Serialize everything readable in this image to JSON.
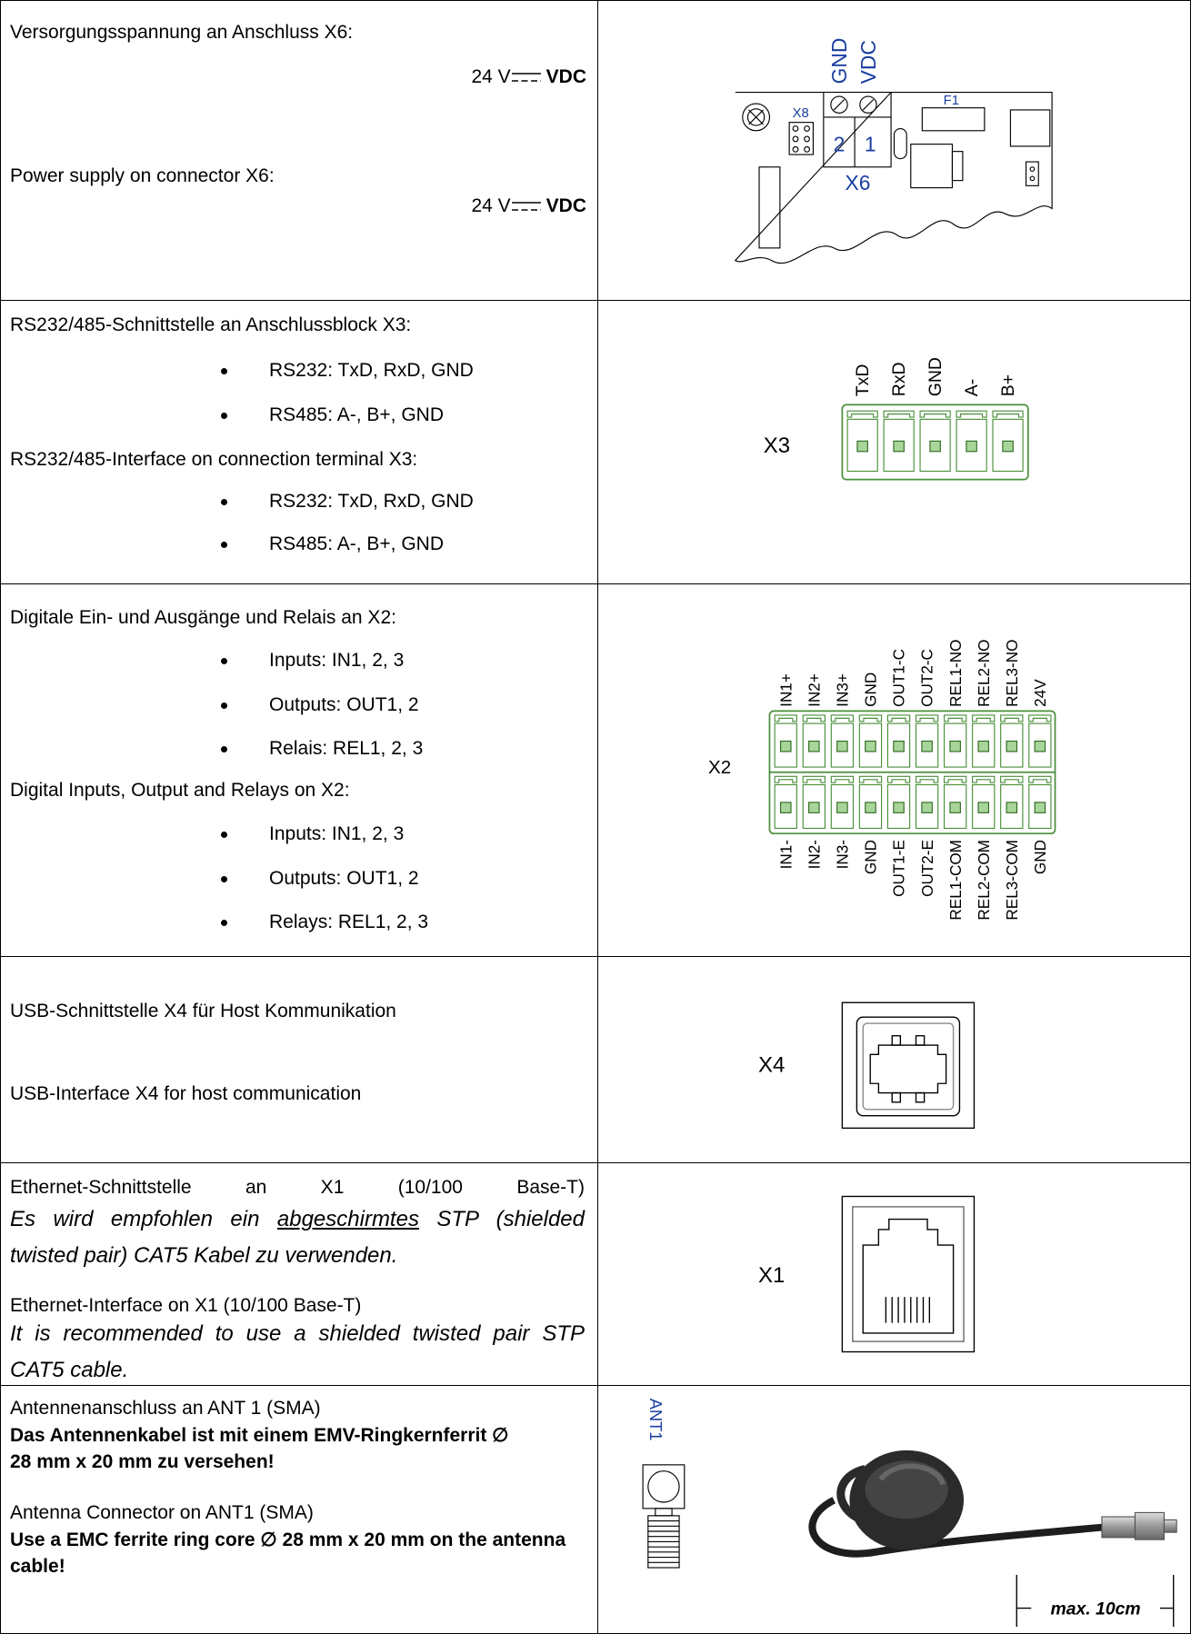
{
  "rows": [
    {
      "left": {
        "de": "Versorgungsspannung an Anschluss X6:",
        "de_voltage": "24 V",
        "de_unit": "VDC",
        "en": "Power supply on connector X6:",
        "en_voltage": "24 V",
        "en_unit": "VDC"
      },
      "right": {
        "pin_labels": [
          "GND",
          "VDC"
        ],
        "jumper": "X8",
        "fuse": "F1",
        "pin_numbers": [
          "2",
          "1"
        ],
        "connector": "X6"
      }
    },
    {
      "left": {
        "de": "RS232/485-Schnittstelle an Anschlussblock X3:",
        "de_bullets": [
          "RS232: TxD, RxD, GND",
          "RS485: A-, B+, GND"
        ],
        "en": "RS232/485-Interface on connection terminal X3:",
        "en_bullets": [
          "RS232: TxD, RxD, GND",
          "RS485: A-, B+, GND"
        ]
      },
      "right": {
        "connector": "X3",
        "pins": [
          "TxD",
          "RxD",
          "GND",
          "A-",
          "B+"
        ]
      }
    },
    {
      "left": {
        "de": "Digitale Ein- und Ausgänge und Relais an X2:",
        "de_bullets": [
          "Inputs: IN1, 2, 3",
          "Outputs: OUT1, 2",
          "Relais: REL1, 2, 3"
        ],
        "en": "Digital Inputs, Output and Relays on X2:",
        "en_bullets": [
          "Inputs: IN1, 2, 3",
          "Outputs: OUT1, 2",
          "Relays: REL1, 2, 3"
        ]
      },
      "right": {
        "connector": "X2",
        "top_pins": [
          "IN1+",
          "IN2+",
          "IN3+",
          "GND",
          "OUT1-C",
          "OUT2-C",
          "REL1-NO",
          "REL2-NO",
          "REL3-NO",
          "24V"
        ],
        "bottom_pins": [
          "IN1-",
          "IN2-",
          "IN3-",
          "GND",
          "OUT1-E",
          "OUT2-E",
          "REL1-COM",
          "REL2-COM",
          "REL3-COM",
          "GND"
        ]
      }
    },
    {
      "left": {
        "de": "USB-Schnittstelle X4 für Host Kommunikation",
        "en": "USB-Interface X4 for host communication"
      },
      "right": {
        "connector": "X4"
      }
    },
    {
      "left": {
        "de": "Ethernet-Schnittstelle an X1 (10/100 Base-T)",
        "de_note": [
          "Es wird empfohlen ein ",
          "abgeschirmtes",
          " STP (shielded twisted pair) CAT5 Kabel zu verwenden."
        ],
        "en": "Ethernet-Interface on X1 (10/100 Base-T)",
        "en_note": "It is recommended to use a shielded twisted pair STP CAT5 cable."
      },
      "right": {
        "connector": "X1"
      }
    },
    {
      "left": {
        "de": "Antennenanschluss an ANT 1 (SMA)",
        "de_note": "Das Antennenkabel ist mit einem EMV-Ringkernferrit ∅ 28 mm x 20 mm zu versehen!",
        "en": "Antenna Connector on ANT1 (SMA)",
        "en_note": "Use a EMC ferrite ring core ∅ 28 mm x 20 mm on the antenna cable!"
      },
      "right": {
        "connector": "ANT1",
        "cable_length": "max. 10cm"
      }
    }
  ]
}
